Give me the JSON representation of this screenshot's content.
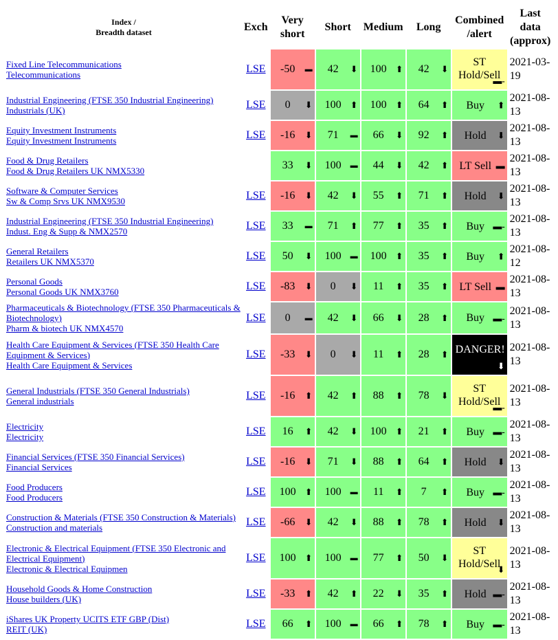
{
  "headers": {
    "index_line1": "Index /",
    "index_line2": "Breadth dataset",
    "exch": "Exch",
    "very_short_1": "Very",
    "very_short_2": "short",
    "short": "Short",
    "medium": "Medium",
    "long": "Long",
    "combined_1": "Combined",
    "combined_2": "/alert",
    "last_1": "Last",
    "last_2": "data",
    "last_3": "(approx)"
  },
  "rows": [
    {
      "name1": "Fixed Line Telecommunications",
      "name2": "Telecommunications",
      "exch": "LSE",
      "vs": {
        "v": "-50",
        "c": "r",
        "a": "flat"
      },
      "s": {
        "v": "42",
        "c": "g",
        "a": "down"
      },
      "m": {
        "v": "100",
        "c": "g",
        "a": "up"
      },
      "l": {
        "v": "42",
        "c": "g",
        "a": "down"
      },
      "comb": {
        "t": "ST Hold/Sell",
        "c": "y",
        "a": "flat2",
        "tall": true
      },
      "date": "2021-03-19"
    },
    {
      "name1": "Industrial Engineering (FTSE 350 Industrial Engineering)",
      "name2": "Industrials (UK)",
      "exch": "LSE",
      "vs": {
        "v": "0",
        "c": "gr",
        "a": "down"
      },
      "s": {
        "v": "100",
        "c": "g",
        "a": "up"
      },
      "m": {
        "v": "100",
        "c": "g",
        "a": "up"
      },
      "l": {
        "v": "64",
        "c": "g",
        "a": "up"
      },
      "comb": {
        "t": "Buy",
        "c": "g",
        "a": "up"
      },
      "date": "2021-08-13"
    },
    {
      "name1": "Equity Investment Instruments",
      "name2": "Equity Investment Instruments",
      "exch": "LSE",
      "vs": {
        "v": "-16",
        "c": "r",
        "a": "down"
      },
      "s": {
        "v": "71",
        "c": "g",
        "a": "flat"
      },
      "m": {
        "v": "66",
        "c": "g",
        "a": "down"
      },
      "l": {
        "v": "92",
        "c": "g",
        "a": "up"
      },
      "comb": {
        "t": "Hold",
        "c": "dk",
        "a": "down"
      },
      "date": "2021-08-13"
    },
    {
      "name1": "Food & Drug Retailers",
      "name2": "Food & Drug Retailers UK NMX5330",
      "exch": "",
      "vs": {
        "v": "33",
        "c": "g",
        "a": "down"
      },
      "s": {
        "v": "100",
        "c": "g",
        "a": "flat"
      },
      "m": {
        "v": "44",
        "c": "g",
        "a": "down"
      },
      "l": {
        "v": "42",
        "c": "g",
        "a": "up"
      },
      "comb": {
        "t": "LT Sell",
        "c": "r",
        "a": "flat"
      },
      "date": "2021-08-13"
    },
    {
      "name1": "Software & Computer Services",
      "name2": "Sw & Comp Srvs UK NMX9530",
      "exch": "LSE",
      "vs": {
        "v": "-16",
        "c": "r",
        "a": "down"
      },
      "s": {
        "v": "42",
        "c": "g",
        "a": "down"
      },
      "m": {
        "v": "55",
        "c": "g",
        "a": "up"
      },
      "l": {
        "v": "71",
        "c": "g",
        "a": "up"
      },
      "comb": {
        "t": "Hold",
        "c": "dk",
        "a": "down"
      },
      "date": "2021-08-13"
    },
    {
      "name1": "Industrial Engineering (FTSE 350 Industrial Engineering)",
      "name2": "Indust. Eng & Supp & NMX2570",
      "exch": "LSE",
      "vs": {
        "v": "33",
        "c": "g",
        "a": "flat"
      },
      "s": {
        "v": "71",
        "c": "g",
        "a": "up"
      },
      "m": {
        "v": "77",
        "c": "g",
        "a": "up"
      },
      "l": {
        "v": "35",
        "c": "g",
        "a": "up"
      },
      "comb": {
        "t": "Buy",
        "c": "g",
        "a": "flat2"
      },
      "date": "2021-08-13"
    },
    {
      "name1": "General Retailers",
      "name2": "Retailers UK NMX5370",
      "exch": "LSE",
      "vs": {
        "v": "50",
        "c": "g",
        "a": "down"
      },
      "s": {
        "v": "100",
        "c": "g",
        "a": "flat"
      },
      "m": {
        "v": "100",
        "c": "g",
        "a": "up"
      },
      "l": {
        "v": "35",
        "c": "g",
        "a": "up"
      },
      "comb": {
        "t": "Buy",
        "c": "g",
        "a": "up"
      },
      "date": "2021-08-12"
    },
    {
      "name1": "Personal Goods",
      "name2": "Personal Goods UK NMX3760",
      "exch": "LSE",
      "vs": {
        "v": "-83",
        "c": "r",
        "a": "down"
      },
      "s": {
        "v": "0",
        "c": "gr",
        "a": "down"
      },
      "m": {
        "v": "11",
        "c": "g",
        "a": "up"
      },
      "l": {
        "v": "35",
        "c": "g",
        "a": "up"
      },
      "comb": {
        "t": "LT Sell",
        "c": "r",
        "a": "flat"
      },
      "date": "2021-08-13"
    },
    {
      "name1": "Pharmaceuticals & Biotechnology (FTSE 350 Pharmaceuticals & Biotechnology)",
      "name2": "Pharm & biotech UK NMX4570",
      "exch": "LSE",
      "vs": {
        "v": "0",
        "c": "gr",
        "a": "flat"
      },
      "s": {
        "v": "42",
        "c": "g",
        "a": "down"
      },
      "m": {
        "v": "66",
        "c": "g",
        "a": "down"
      },
      "l": {
        "v": "28",
        "c": "g",
        "a": "up"
      },
      "comb": {
        "t": "Buy",
        "c": "g",
        "a": "flat2"
      },
      "date": "2021-08-13"
    },
    {
      "name1": "Health Care Equipment & Services (FTSE 350 Health Care Equipment & Services)",
      "name2": "Health Care Equipment & Services",
      "exch": "LSE",
      "vs": {
        "v": "-33",
        "c": "r",
        "a": "down"
      },
      "s": {
        "v": "0",
        "c": "gr",
        "a": "down"
      },
      "m": {
        "v": "11",
        "c": "g",
        "a": "up"
      },
      "l": {
        "v": "28",
        "c": "g",
        "a": "up"
      },
      "comb": {
        "t": "DANGER!",
        "c": "bk",
        "a": "down",
        "tall": true
      },
      "date": "2021-08-13"
    },
    {
      "name1": "General Industrials (FTSE 350 General Industrials)",
      "name2": "General industrials",
      "exch": "LSE",
      "vs": {
        "v": "-16",
        "c": "r",
        "a": "up"
      },
      "s": {
        "v": "42",
        "c": "g",
        "a": "up"
      },
      "m": {
        "v": "88",
        "c": "g",
        "a": "up"
      },
      "l": {
        "v": "78",
        "c": "g",
        "a": "down"
      },
      "comb": {
        "t": "ST Hold/Sell",
        "c": "y",
        "a": "flat2",
        "tall": true
      },
      "date": "2021-08-13"
    },
    {
      "name1": "Electricity",
      "name2": "Electricity",
      "exch": "LSE",
      "vs": {
        "v": "16",
        "c": "g",
        "a": "up"
      },
      "s": {
        "v": "42",
        "c": "g",
        "a": "down"
      },
      "m": {
        "v": "100",
        "c": "g",
        "a": "up"
      },
      "l": {
        "v": "21",
        "c": "g",
        "a": "up"
      },
      "comb": {
        "t": "Buy",
        "c": "g",
        "a": "flat2"
      },
      "date": "2021-08-13"
    },
    {
      "name1": "Financial Services (FTSE 350 Financial Services)",
      "name2": "Financial Services",
      "exch": "LSE",
      "vs": {
        "v": "-16",
        "c": "r",
        "a": "down"
      },
      "s": {
        "v": "71",
        "c": "g",
        "a": "down"
      },
      "m": {
        "v": "88",
        "c": "g",
        "a": "up"
      },
      "l": {
        "v": "64",
        "c": "g",
        "a": "up"
      },
      "comb": {
        "t": "Hold",
        "c": "dk",
        "a": "down"
      },
      "date": "2021-08-13"
    },
    {
      "name1": "Food Producers",
      "name2": "Food Producers",
      "exch": "LSE",
      "vs": {
        "v": "100",
        "c": "g",
        "a": "up"
      },
      "s": {
        "v": "100",
        "c": "g",
        "a": "flat"
      },
      "m": {
        "v": "11",
        "c": "g",
        "a": "up"
      },
      "l": {
        "v": "7",
        "c": "g",
        "a": "up"
      },
      "comb": {
        "t": "Buy",
        "c": "g",
        "a": "flat2"
      },
      "date": "2021-08-13"
    },
    {
      "name1": "Construction & Materials (FTSE 350 Construction & Materials)",
      "name2": "Construction and materials",
      "exch": "LSE",
      "vs": {
        "v": "-66",
        "c": "r",
        "a": "down"
      },
      "s": {
        "v": "42",
        "c": "g",
        "a": "down"
      },
      "m": {
        "v": "88",
        "c": "g",
        "a": "up"
      },
      "l": {
        "v": "78",
        "c": "g",
        "a": "up"
      },
      "comb": {
        "t": "Hold",
        "c": "dk",
        "a": "down"
      },
      "date": "2021-08-13"
    },
    {
      "name1": "Electronic & Electrical Equipment (FTSE 350 Electronic and Electrical Equipment)",
      "name2": "Electronic & Electrical Equipmen",
      "exch": "LSE",
      "vs": {
        "v": "100",
        "c": "g",
        "a": "up"
      },
      "s": {
        "v": "100",
        "c": "g",
        "a": "flat"
      },
      "m": {
        "v": "77",
        "c": "g",
        "a": "up"
      },
      "l": {
        "v": "50",
        "c": "g",
        "a": "down"
      },
      "comb": {
        "t": "ST Hold/Sell",
        "c": "y",
        "a": "down",
        "tall": true
      },
      "date": "2021-08-13"
    },
    {
      "name1": "Household Goods & Home Construction",
      "name2": "House builders (UK)",
      "exch": "LSE",
      "vs": {
        "v": "-33",
        "c": "r",
        "a": "up"
      },
      "s": {
        "v": "42",
        "c": "g",
        "a": "up"
      },
      "m": {
        "v": "22",
        "c": "g",
        "a": "down"
      },
      "l": {
        "v": "35",
        "c": "g",
        "a": "up"
      },
      "comb": {
        "t": "Hold",
        "c": "dk",
        "a": "flat2"
      },
      "date": "2021-08-13"
    },
    {
      "name1": "iShares UK Property UCITS ETF GBP (Dist)",
      "name2": "REIT (UK)",
      "exch": "LSE",
      "vs": {
        "v": "66",
        "c": "g",
        "a": "up"
      },
      "s": {
        "v": "100",
        "c": "g",
        "a": "flat"
      },
      "m": {
        "v": "66",
        "c": "g",
        "a": "up"
      },
      "l": {
        "v": "78",
        "c": "g",
        "a": "up"
      },
      "comb": {
        "t": "Buy",
        "c": "g",
        "a": "flat2"
      },
      "date": "2021-08-13"
    }
  ],
  "arrow_glyphs": {
    "up": "⬆",
    "down": "⬇",
    "flat": "▬",
    "flat2": "▬-"
  },
  "colors": {
    "green": "#88ff88",
    "red": "#ff8888",
    "grey": "#a9a9a9",
    "dark_grey": "#888888",
    "yellow": "#ffff99",
    "black": "#000000",
    "link": "#0000cc"
  }
}
